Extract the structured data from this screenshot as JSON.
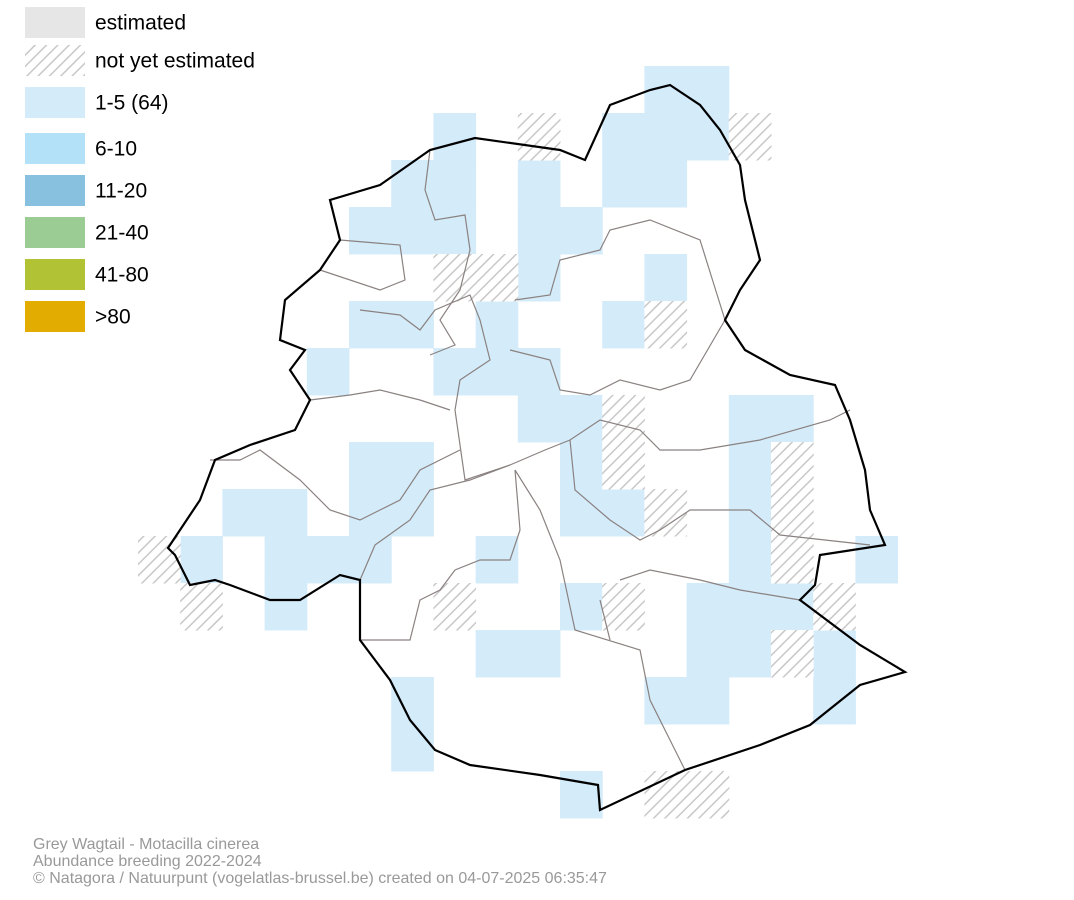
{
  "legend": [
    {
      "label": "estimated",
      "color": "#e6e6e6"
    },
    {
      "label": "not yet estimated",
      "pattern": "hatch"
    },
    {
      "label": "1-5 (64)",
      "color": "#d4ebfa"
    },
    {
      "label": "6-10",
      "color": "#b3e1f8"
    },
    {
      "label": "11-20",
      "color": "#88c0df"
    },
    {
      "label": "21-40",
      "color": "#9acc94"
    },
    {
      "label": "41-80",
      "color": "#b1c235"
    },
    {
      "label": ">80",
      "color": "#e2ac00"
    }
  ],
  "footer": [
    "Grey Wagtail - Motacilla cinerea",
    "Abundance breeding 2022-2024",
    "© Natagora / Natuurpunt (vogelatlas-brussel.be) created on 04-07-2025 06:35:47"
  ]
}
